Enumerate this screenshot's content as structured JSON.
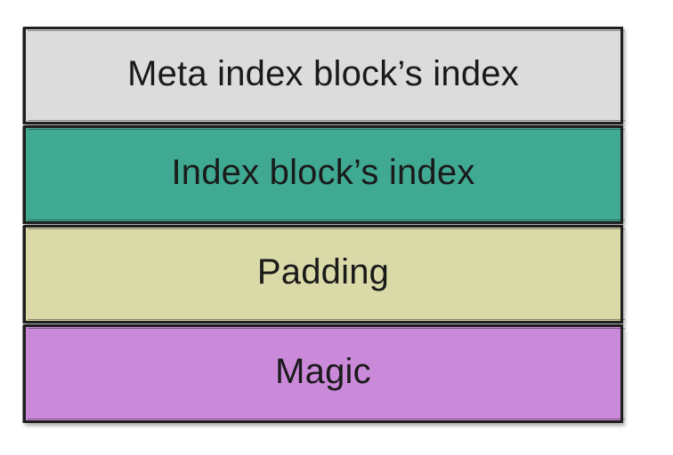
{
  "blocks": [
    {
      "label": "Meta index block’s index",
      "color": "#dcdcdd"
    },
    {
      "label": "Index block’s index",
      "color": "#3fa992"
    },
    {
      "label": "Padding",
      "color": "#dad9a8"
    },
    {
      "label": "Magic",
      "color": "#cb89da"
    }
  ]
}
